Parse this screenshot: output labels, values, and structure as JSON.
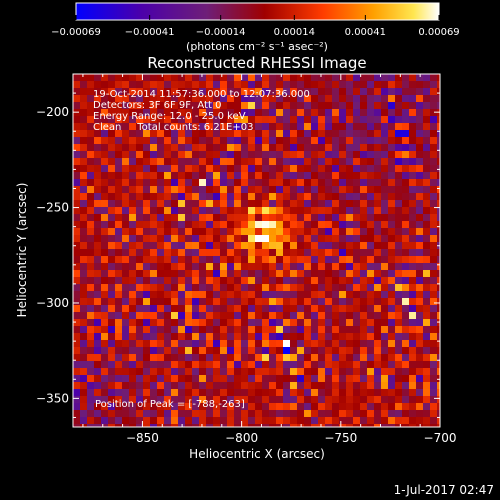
{
  "chart_data": {
    "type": "heatmap",
    "title": "Reconstructed RHESSI Image",
    "xlabel": "Heliocentric X (arcsec)",
    "ylabel": "Heliocentric Y (arcsec)",
    "xlim": [
      -885,
      -700
    ],
    "ylim": [
      -365,
      -180
    ],
    "x_ticks": [
      -850,
      -800,
      -750,
      -700
    ],
    "x_tick_labels": [
      "−850",
      "−800",
      "−750",
      "−700"
    ],
    "y_ticks": [
      -200,
      -250,
      -300,
      -350
    ],
    "y_tick_labels": [
      "−200",
      "−250",
      "−300",
      "−350"
    ],
    "colorbar": {
      "range": [
        -0.00069,
        0.00069
      ],
      "ticks": [
        -0.00069,
        -0.00041,
        -0.00014,
        0.00014,
        0.00041,
        0.00069
      ],
      "tick_labels": [
        "−0.00069",
        "−0.00041",
        "−0.00014",
        "0.00014",
        "0.00041",
        "0.00069"
      ],
      "units_label": "(photons cm⁻² s⁻¹ asec⁻²)",
      "colors": [
        "#0000ff",
        "#4b00aa",
        "#6e1e78",
        "#a00000",
        "#ff3c00",
        "#ffa000",
        "#ffe650",
        "#ffffff"
      ]
    },
    "annotations": [
      "19-Oct-2014 11:57:36.000 to 12:07:36.000",
      "Detectors: 3F 6F 9F, Att 0",
      "Energy Range: 12.0 - 25.0 keV",
      "Clean     Total counts: 6.21E+03"
    ],
    "peak_label": "Position of Peak = [-788,-263]",
    "peak": [
      -788,
      -263
    ],
    "grid": false
  },
  "footer": {
    "timestamp": "1-Jul-2017 02:47"
  }
}
